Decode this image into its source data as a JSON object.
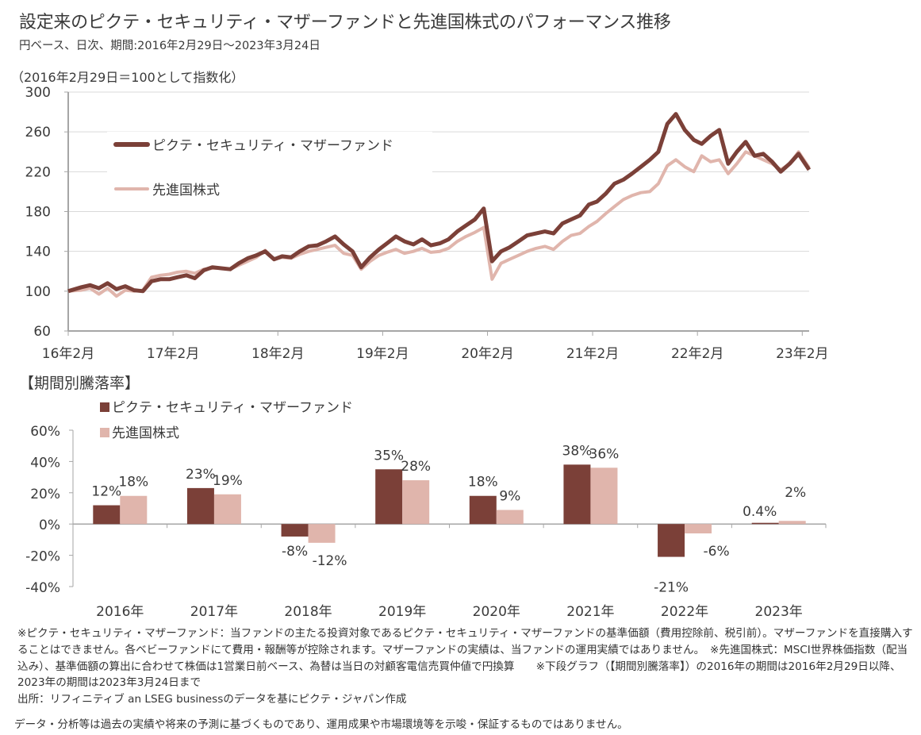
{
  "header": {
    "title": "設定来のピクテ・セキュリティ・マザーファンドと先進国株式のパフォーマンス推移",
    "subtitle": "円ベース、日次、期間:2016年2月29日～2023年3月24日",
    "index_note": "（2016年2月29日＝100として指数化）"
  },
  "section_title": "【期間別騰落率】",
  "colors": {
    "fund": "#7b4038",
    "developed": "#e0b5ac",
    "grid": "#d9d9d9",
    "axis": "#a6a6a6"
  },
  "chart_data": [
    {
      "type": "line",
      "title": "設定来のピクテ・セキュリティ・マザーファンドと先進国株式のパフォーマンス推移",
      "ylabel": "（2016年2月29日＝100として指数化）",
      "ylim": [
        60,
        300
      ],
      "yticks": [
        300,
        260,
        220,
        180,
        140,
        100,
        60
      ],
      "xlim": [
        "2016-02-29",
        "2023-03-24"
      ],
      "xticks": [
        {
          "date": "2016-02",
          "label": "16年2月"
        },
        {
          "date": "2017-02",
          "label": "17年2月"
        },
        {
          "date": "2018-02",
          "label": "18年2月"
        },
        {
          "date": "2019-02",
          "label": "19年2月"
        },
        {
          "date": "2020-02",
          "label": "20年2月"
        },
        {
          "date": "2021-02",
          "label": "21年2月"
        },
        {
          "date": "2022-02",
          "label": "22年2月"
        },
        {
          "date": "2023-02",
          "label": "23年2月"
        }
      ],
      "grid": true,
      "legend_position": "top-left",
      "x": [
        "2016-02-29",
        "2016-04",
        "2016-05",
        "2016-06",
        "2016-07",
        "2016-08",
        "2016-09",
        "2016-10",
        "2016-11",
        "2016-12",
        "2017-01",
        "2017-02",
        "2017-03",
        "2017-04",
        "2017-05",
        "2017-06",
        "2017-07",
        "2017-08",
        "2017-09",
        "2017-10",
        "2017-11",
        "2017-12",
        "2018-01",
        "2018-02",
        "2018-03",
        "2018-04",
        "2018-05",
        "2018-06",
        "2018-07",
        "2018-08",
        "2018-09",
        "2018-10",
        "2018-11",
        "2018-12",
        "2019-01",
        "2019-02",
        "2019-03",
        "2019-04",
        "2019-05",
        "2019-06",
        "2019-07",
        "2019-08",
        "2019-09",
        "2019-10",
        "2019-11",
        "2019-12",
        "2020-01",
        "2020-02",
        "2020-03",
        "2020-04",
        "2020-05",
        "2020-06",
        "2020-07",
        "2020-08",
        "2020-09",
        "2020-10",
        "2020-11",
        "2020-12",
        "2021-01",
        "2021-02",
        "2021-03",
        "2021-04",
        "2021-05",
        "2021-06",
        "2021-07",
        "2021-08",
        "2021-09",
        "2021-10",
        "2021-11",
        "2021-12",
        "2022-01",
        "2022-02",
        "2022-03",
        "2022-04",
        "2022-05",
        "2022-06",
        "2022-07",
        "2022-08",
        "2022-09",
        "2022-10",
        "2022-11",
        "2022-12",
        "2023-01",
        "2023-02",
        "2023-03-24"
      ],
      "series": [
        {
          "name": "ピクテ・セキュリティ・マザーファンド",
          "color": "#7b4038",
          "values": [
            100,
            104,
            106,
            103,
            108,
            102,
            105,
            101,
            100,
            110,
            112,
            112,
            114,
            116,
            113,
            121,
            124,
            123,
            122,
            128,
            133,
            136,
            140,
            132,
            135,
            134,
            140,
            145,
            146,
            150,
            155,
            147,
            140,
            124,
            134,
            142,
            148,
            155,
            150,
            147,
            152,
            146,
            148,
            152,
            160,
            166,
            172,
            183,
            130,
            140,
            144,
            150,
            156,
            158,
            160,
            158,
            168,
            172,
            176,
            187,
            190,
            198,
            208,
            212,
            218,
            225,
            232,
            240,
            268,
            278,
            262,
            252,
            248,
            256,
            262,
            228,
            240,
            250,
            236,
            238,
            230,
            220,
            228,
            238,
            222
          ]
        },
        {
          "name": "先進国株式",
          "color": "#e0b5ac",
          "values": [
            100,
            101,
            103,
            97,
            103,
            95,
            101,
            100,
            101,
            114,
            116,
            117,
            119,
            120,
            118,
            122,
            123,
            123,
            122,
            126,
            130,
            134,
            141,
            132,
            134,
            133,
            137,
            140,
            142,
            144,
            146,
            138,
            136,
            122,
            130,
            136,
            139,
            142,
            138,
            140,
            143,
            139,
            140,
            143,
            150,
            155,
            159,
            164,
            112,
            128,
            132,
            136,
            140,
            143,
            145,
            142,
            150,
            156,
            158,
            165,
            170,
            178,
            185,
            192,
            196,
            199,
            200,
            208,
            226,
            232,
            225,
            220,
            236,
            230,
            232,
            218,
            228,
            240,
            236,
            232,
            228,
            222,
            228,
            240,
            224
          ]
        }
      ]
    },
    {
      "type": "bar",
      "title": "【期間別騰落率】",
      "categories": [
        "2016年",
        "2017年",
        "2018年",
        "2019年",
        "2020年",
        "2021年",
        "2022年",
        "2023年"
      ],
      "ylim": [
        -40,
        60
      ],
      "yticks": [
        "60%",
        "40%",
        "20%",
        "0%",
        "-20%",
        "-40%"
      ],
      "ytick_values": [
        60,
        40,
        20,
        0,
        -20,
        -40
      ],
      "grid": false,
      "legend_position": "top-left",
      "series": [
        {
          "name": "ピクテ・セキュリティ・マザーファンド",
          "color": "#7b4038",
          "values": [
            12,
            23,
            -8,
            35,
            18,
            38,
            -21,
            0.4
          ],
          "labels": [
            "12%",
            "23%",
            "-8%",
            "35%",
            "18%",
            "38%",
            "-21%",
            "0.4%"
          ]
        },
        {
          "name": "先進国株式",
          "color": "#e0b5ac",
          "values": [
            18,
            19,
            -12,
            28,
            9,
            36,
            -6,
            2
          ],
          "labels": [
            "18%",
            "19%",
            "-12%",
            "28%",
            "9%",
            "36%",
            "-6%",
            "2%"
          ]
        }
      ]
    }
  ],
  "footnotes": [
    "※ピクテ・セキュリティ・マザーファンド：当ファンドの主たる投資対象であるピクテ・セキュリティ・マザーファンドの基準価額（費用控除前、税引前）。マザーファンドを直接購入することはできません。各ベビーファンドにて費用・報酬等が控除されます。マザーファンドの実績は、当ファンドの運用実績ではありません。　※先進国株式：MSCI世界株価指数（配当込み）、基準価額の算出に合わせて株価は1営業日前ベース、為替は当日の対顧客電信売買仲値で円換算　　※下段グラフ（【期間別騰落率】）の2016年の期間は2016年2月29日以降、2023年の期間は2023年3月24日まで",
    "出所：リフィニティブ an LSEG businessのデータを基にピクテ・ジャパン作成"
  ],
  "disclaimer": "データ・分析等は過去の実績や将来の予測に基づくものであり、運用成果や市場環境等を示唆・保証するものではありません。"
}
